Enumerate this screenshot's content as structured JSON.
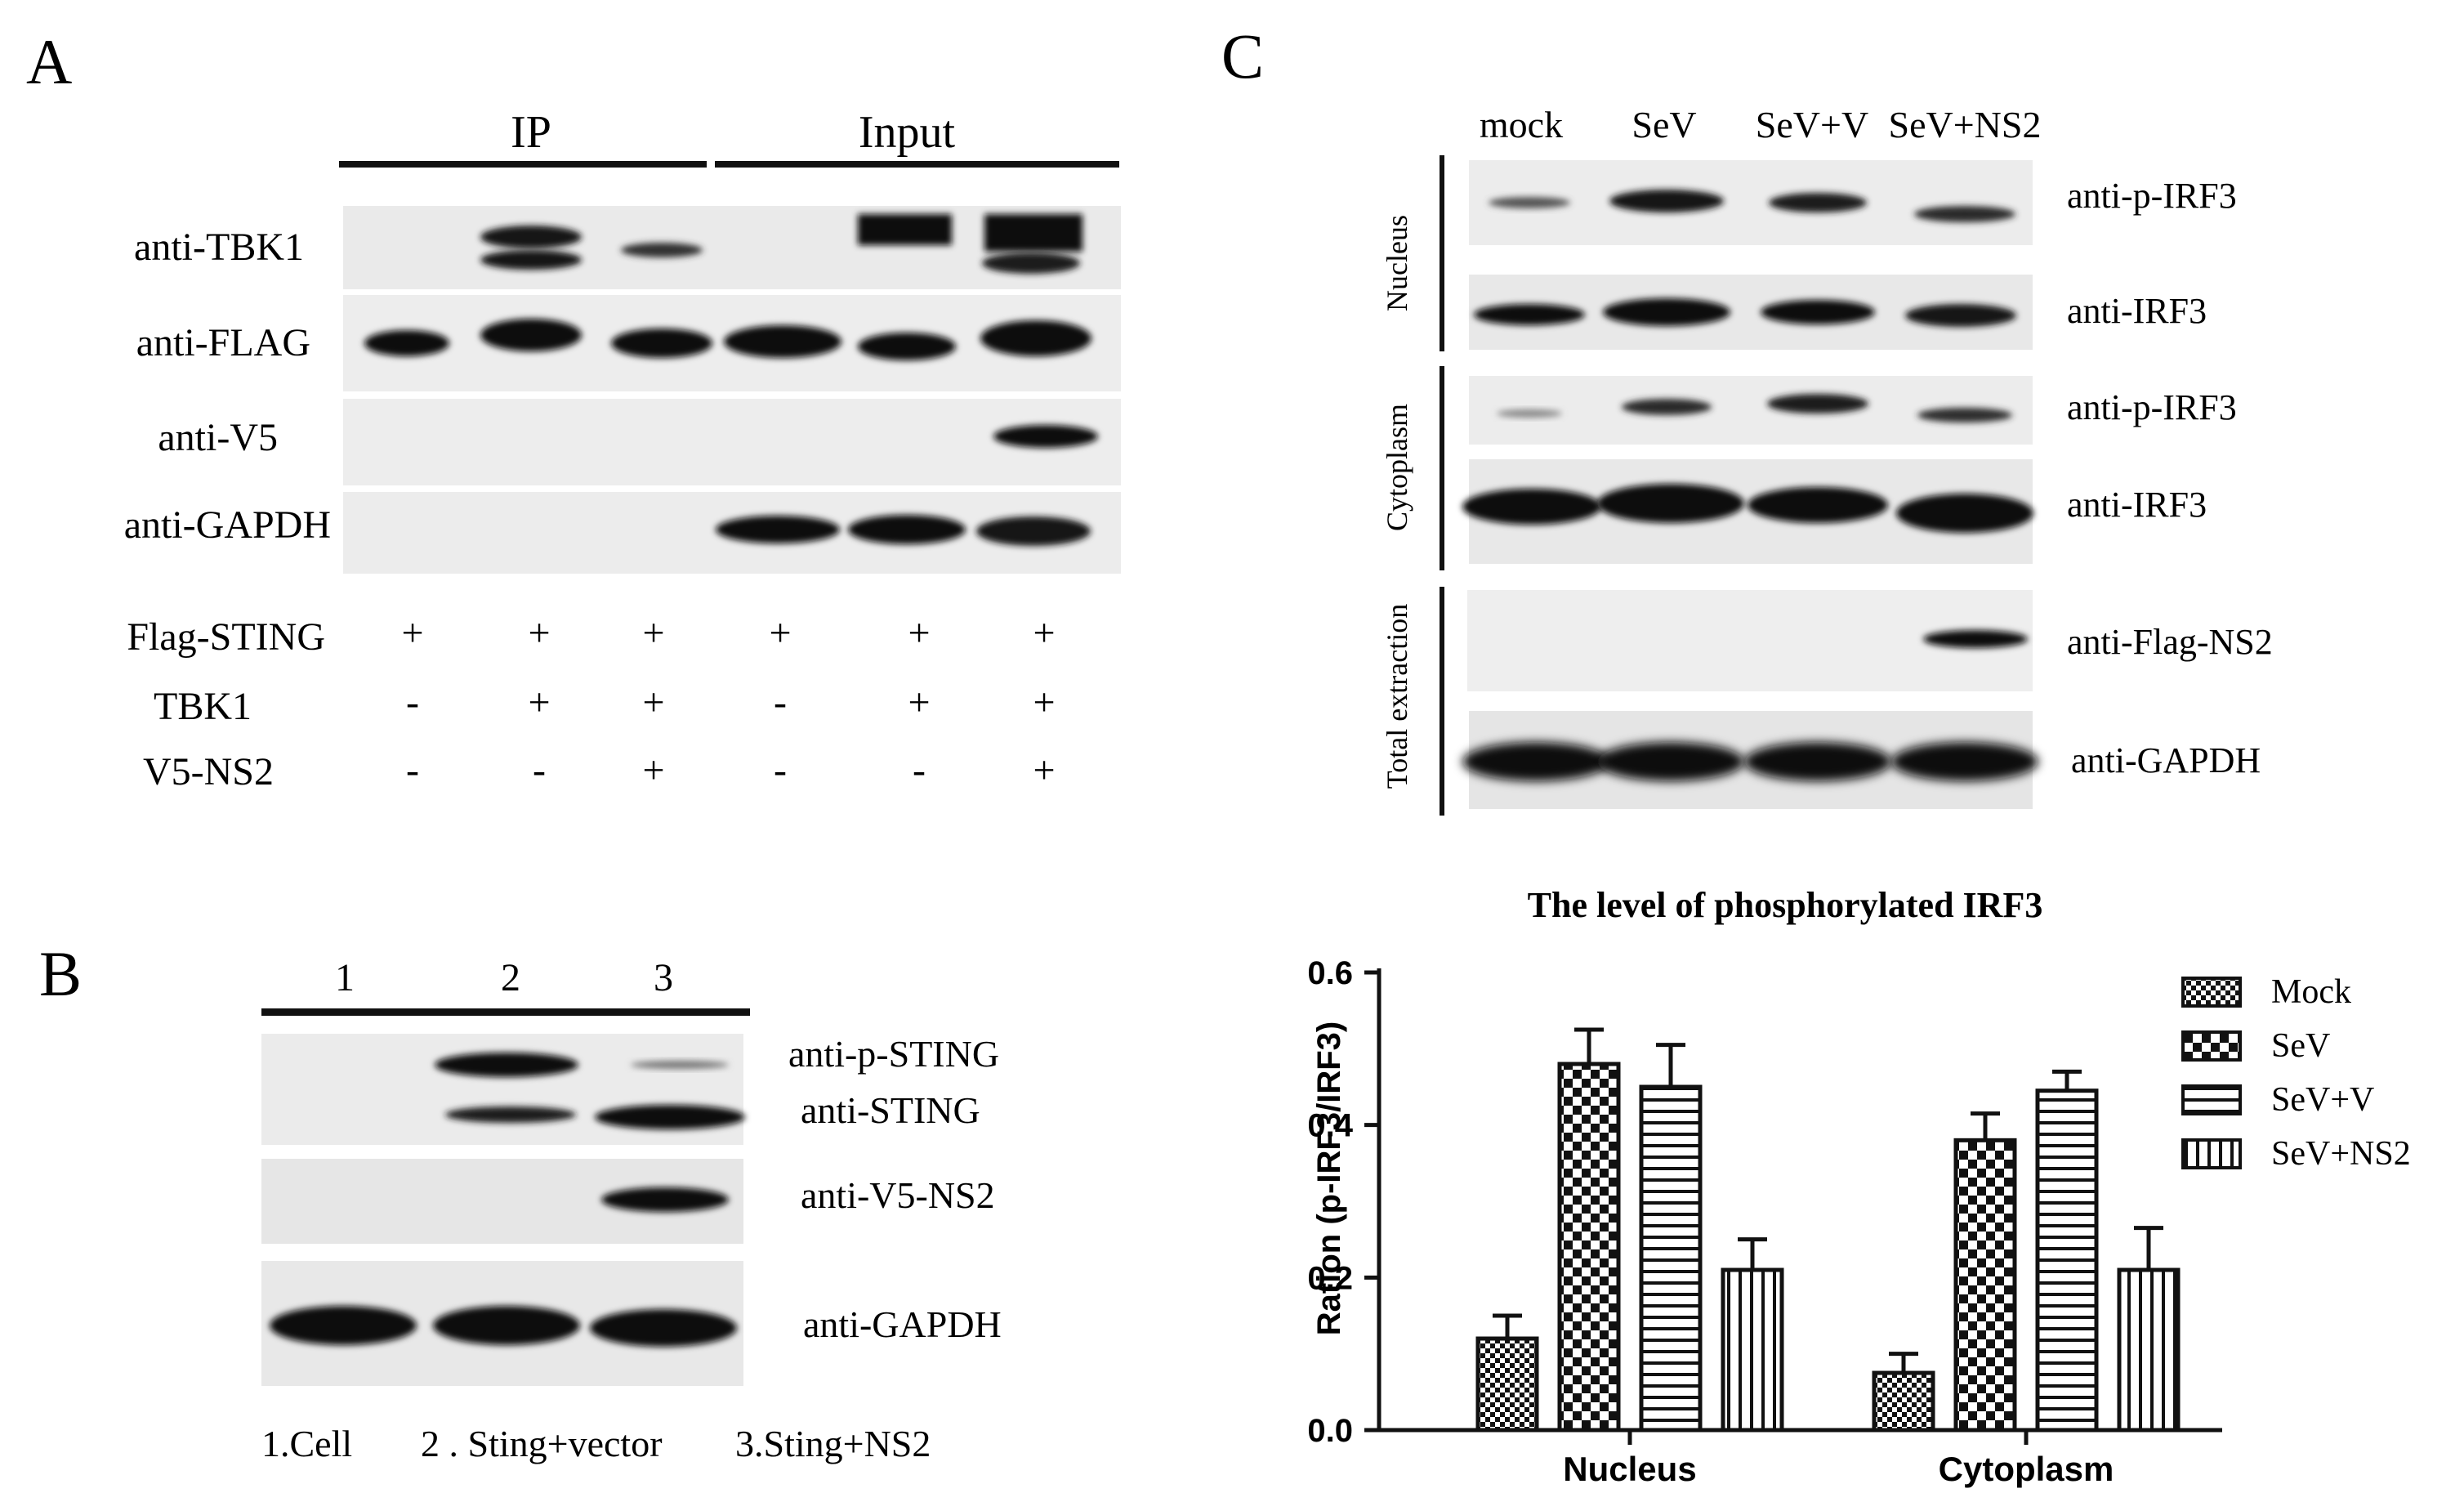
{
  "panels": {
    "A": {
      "letter": "A",
      "groups": [
        "IP",
        "Input"
      ],
      "blot_labels": [
        "anti-TBK1",
        "anti-FLAG",
        "anti-V5",
        "anti-GAPDH"
      ],
      "conditions": [
        {
          "name": "Flag-STING",
          "values": [
            "+",
            "+",
            "+",
            "+",
            "+",
            "+"
          ]
        },
        {
          "name": "TBK1",
          "values": [
            "-",
            "+",
            "+",
            "-",
            "+",
            "+"
          ]
        },
        {
          "name": "V5-NS2",
          "values": [
            "-",
            "-",
            "+",
            "-",
            "-",
            "+"
          ]
        }
      ]
    },
    "B": {
      "letter": "B",
      "lanes": [
        "1",
        "2",
        "3"
      ],
      "blot_labels": [
        "anti-p-STING",
        "anti-STING",
        "anti-V5-NS2",
        "anti-GAPDH"
      ],
      "legend": [
        "1.Cell",
        "2 . Sting+vector",
        "3.Sting+NS2"
      ]
    },
    "C": {
      "letter": "C",
      "lanes": [
        "mock",
        "SeV",
        "SeV+V",
        "SeV+NS2"
      ],
      "fractions": [
        "Nucleus",
        "Cytoplasm",
        "Total extraction"
      ],
      "blot_labels": [
        "anti-p-IRF3",
        "anti-IRF3",
        "anti-p-IRF3",
        "anti-IRF3",
        "anti-Flag-NS2",
        "anti-GAPDH"
      ]
    }
  },
  "chart_data": {
    "type": "bar",
    "title": "The level of phosphorylated IRF3",
    "xlabel": "",
    "ylabel": "Ration (p-IRF3/IRF3)",
    "ylim": [
      0,
      0.6
    ],
    "yticks": [
      "0.0",
      "0.2",
      "0.4",
      "0.6"
    ],
    "categories": [
      "Nucleus",
      "Cytoplasm"
    ],
    "legend_position": "right",
    "series": [
      {
        "name": "Mock",
        "pattern": "fine-check",
        "values": [
          0.12,
          0.075
        ],
        "errors": [
          0.03,
          0.025
        ]
      },
      {
        "name": "SeV",
        "pattern": "checker",
        "values": [
          0.48,
          0.38
        ],
        "errors": [
          0.045,
          0.035
        ]
      },
      {
        "name": "SeV+V",
        "pattern": "horizontal-lines",
        "values": [
          0.45,
          0.445
        ],
        "errors": [
          0.055,
          0.025
        ]
      },
      {
        "name": "SeV+NS2",
        "pattern": "vertical-lines",
        "values": [
          0.21,
          0.21
        ],
        "errors": [
          0.04,
          0.055
        ]
      }
    ]
  }
}
